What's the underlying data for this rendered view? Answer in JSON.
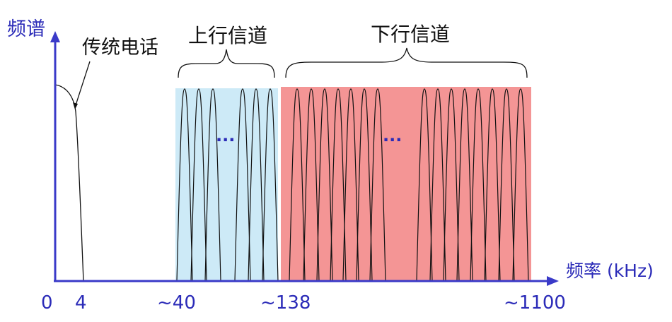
{
  "axes": {
    "y_label": "频谱",
    "x_label": "频率 (kHz)",
    "tick_labels": [
      "0",
      "4",
      "~40",
      "~138",
      "~1100"
    ]
  },
  "regions": {
    "phone": {
      "label": "传统电话"
    },
    "upstream": {
      "label": "上行信道",
      "ellipsis": "...",
      "color": "#cdeaf7"
    },
    "downstream": {
      "label": "下行信道",
      "ellipsis": "...",
      "color": "#f49595"
    }
  },
  "colors": {
    "axis": "#3a3ac8",
    "label": "#2b2bb8",
    "curve": "#111111"
  }
}
